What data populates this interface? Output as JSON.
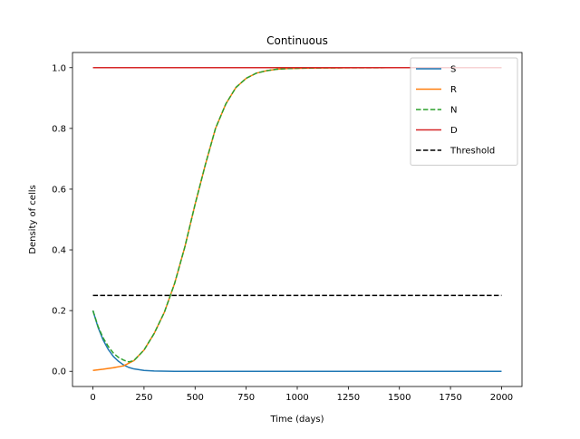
{
  "chart_data": {
    "type": "line",
    "title": "Continuous",
    "xlabel": "Time (days)",
    "ylabel": "Density of cells",
    "xlim": [
      -100,
      2100
    ],
    "ylim": [
      -0.05,
      1.05
    ],
    "xticks": [
      0,
      250,
      500,
      750,
      1000,
      1250,
      1500,
      1750,
      2000
    ],
    "xtick_labels": [
      "0",
      "250",
      "500",
      "750",
      "1000",
      "1250",
      "1500",
      "1750",
      "2000"
    ],
    "yticks": [
      0.0,
      0.2,
      0.4,
      0.6,
      0.8,
      1.0
    ],
    "ytick_labels": [
      "0.0",
      "0.2",
      "0.4",
      "0.6",
      "0.8",
      "1.0"
    ],
    "grid": false,
    "legend_position": "top-right",
    "series": [
      {
        "name": "S",
        "color": "#1f77b4",
        "dash": "solid",
        "x": [
          0,
          25,
          50,
          75,
          100,
          125,
          150,
          175,
          200,
          250,
          300,
          400,
          500,
          1000,
          1500,
          2000
        ],
        "y": [
          0.2,
          0.145,
          0.103,
          0.072,
          0.049,
          0.033,
          0.021,
          0.013,
          0.008,
          0.003,
          0.001,
          0.0,
          0.0,
          0.0,
          0.0,
          0.0
        ]
      },
      {
        "name": "R",
        "color": "#ff7f0e",
        "dash": "solid",
        "x": [
          0,
          50,
          100,
          150,
          200,
          250,
          300,
          350,
          400,
          450,
          500,
          550,
          600,
          650,
          700,
          750,
          800,
          850,
          900,
          950,
          1000,
          1100,
          1200,
          1500,
          2000
        ],
        "y": [
          0.003,
          0.007,
          0.012,
          0.018,
          0.035,
          0.07,
          0.125,
          0.195,
          0.29,
          0.41,
          0.55,
          0.68,
          0.8,
          0.88,
          0.935,
          0.965,
          0.982,
          0.99,
          0.995,
          0.997,
          0.998,
          0.999,
          0.9995,
          1.0,
          1.0
        ]
      },
      {
        "name": "N",
        "color": "#2ca02c",
        "dash": "dashed",
        "x": [
          0,
          25,
          50,
          75,
          100,
          125,
          150,
          175,
          200,
          250,
          300,
          350,
          400,
          450,
          500,
          550,
          600,
          650,
          700,
          750,
          800,
          850,
          900,
          950,
          1000,
          1100,
          1200,
          1500,
          2000
        ],
        "y": [
          0.2,
          0.148,
          0.11,
          0.082,
          0.06,
          0.046,
          0.037,
          0.031,
          0.035,
          0.07,
          0.125,
          0.195,
          0.29,
          0.41,
          0.55,
          0.68,
          0.8,
          0.88,
          0.935,
          0.965,
          0.982,
          0.99,
          0.995,
          0.997,
          0.998,
          0.999,
          0.9995,
          1.0,
          1.0
        ]
      },
      {
        "name": "D",
        "color": "#d62728",
        "dash": "solid",
        "x": [
          0,
          2000
        ],
        "y": [
          1.0,
          1.0
        ]
      },
      {
        "name": "Threshold",
        "color": "#000000",
        "dash": "dashed",
        "x": [
          0,
          2000
        ],
        "y": [
          0.25,
          0.25
        ]
      }
    ]
  }
}
